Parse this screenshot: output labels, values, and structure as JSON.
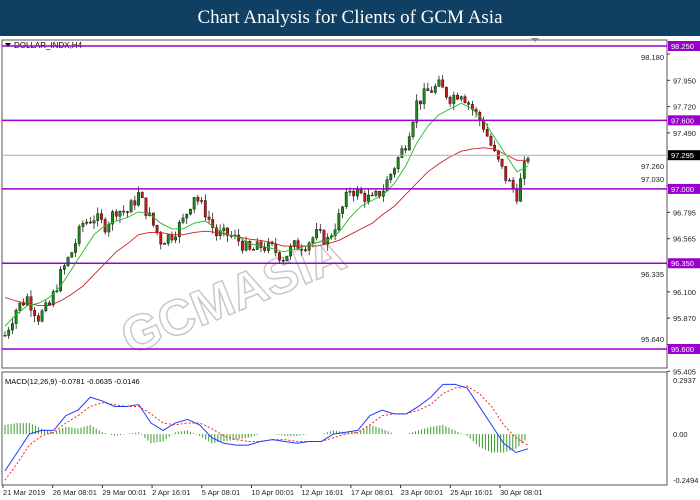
{
  "header": {
    "title": "Chart Analysis for Clients of GCM Asia"
  },
  "chart_data": {
    "type": "candlestick",
    "symbol_label": "DOLLAR_INDX,H4",
    "price_axis": {
      "ticks": [
        "98.180",
        "97.950",
        "97.720",
        "97.490",
        "97.260",
        "97.030",
        "96.795",
        "96.565",
        "96.335",
        "96.100",
        "95.870",
        "95.640",
        "95.405"
      ],
      "range": [
        95.36,
        98.3
      ]
    },
    "current_price": "97.295",
    "horizontal_levels": [
      {
        "label": "98.250",
        "value": 98.25
      },
      {
        "label": "97.600",
        "value": 97.6
      },
      {
        "label": "97.000",
        "value": 97.0
      },
      {
        "label": "96.350",
        "value": 96.35
      },
      {
        "label": "95.600",
        "value": 95.6
      }
    ],
    "closes": [
      95.72,
      95.95,
      96.05,
      95.88,
      95.98,
      96.25,
      96.45,
      96.7,
      96.75,
      96.68,
      96.82,
      96.8,
      96.95,
      96.75,
      96.55,
      96.6,
      96.72,
      96.95,
      96.8,
      96.6,
      96.6,
      96.55,
      96.45,
      96.5,
      96.48,
      96.4,
      96.5,
      96.52,
      96.6,
      96.55,
      96.75,
      97.0,
      96.95,
      96.9,
      97.0,
      97.2,
      97.4,
      97.75,
      97.85,
      97.9,
      97.8,
      97.85,
      97.7,
      97.55,
      97.3,
      97.1,
      96.95,
      97.3
    ],
    "ma_fast": [
      95.8,
      95.9,
      95.98,
      96.0,
      96.05,
      96.15,
      96.3,
      96.45,
      96.6,
      96.68,
      96.72,
      96.75,
      96.8,
      96.78,
      96.7,
      96.65,
      96.65,
      96.7,
      96.72,
      96.65,
      96.6,
      96.58,
      96.52,
      96.5,
      96.48,
      96.45,
      96.47,
      96.5,
      96.53,
      96.55,
      96.62,
      96.75,
      96.85,
      96.9,
      96.95,
      97.05,
      97.2,
      97.4,
      97.55,
      97.65,
      97.7,
      97.75,
      97.7,
      97.6,
      97.45,
      97.3,
      97.15,
      97.2
    ],
    "ma_slow": [
      96.05,
      96.02,
      96.0,
      95.98,
      95.98,
      96.02,
      96.08,
      96.15,
      96.25,
      96.35,
      96.45,
      96.52,
      96.6,
      96.62,
      96.62,
      96.6,
      96.6,
      96.62,
      96.63,
      96.62,
      96.6,
      96.58,
      96.56,
      96.55,
      96.53,
      96.5,
      96.5,
      96.5,
      96.5,
      96.52,
      96.55,
      96.6,
      96.65,
      96.7,
      96.78,
      96.85,
      96.95,
      97.05,
      97.15,
      97.22,
      97.28,
      97.33,
      97.35,
      97.36,
      97.35,
      97.3,
      97.25,
      97.25
    ],
    "macd": {
      "label": "MACD(12,26,9) -0.0781 -0.0635 -0.0146",
      "ticks": [
        "0.2937",
        "0.00",
        "-0.2494"
      ],
      "range": [
        -0.2494,
        0.2937
      ],
      "main": [
        -0.2,
        -0.1,
        0.0,
        0.02,
        0.02,
        0.1,
        0.13,
        0.2,
        0.18,
        0.15,
        0.15,
        0.16,
        0.06,
        0.02,
        0.06,
        0.08,
        0.05,
        -0.02,
        -0.05,
        -0.06,
        -0.06,
        -0.04,
        -0.03,
        -0.04,
        -0.05,
        -0.04,
        -0.04,
        0.0,
        0.01,
        0.02,
        0.1,
        0.13,
        0.11,
        0.11,
        0.15,
        0.2,
        0.27,
        0.27,
        0.25,
        0.15,
        0.05,
        -0.05,
        -0.1,
        -0.08
      ],
      "signal": [
        -0.25,
        -0.16,
        -0.06,
        -0.01,
        0.01,
        0.06,
        0.1,
        0.15,
        0.17,
        0.16,
        0.15,
        0.15,
        0.11,
        0.06,
        0.05,
        0.06,
        0.06,
        0.03,
        -0.01,
        -0.03,
        -0.04,
        -0.04,
        -0.03,
        -0.03,
        -0.04,
        -0.04,
        -0.04,
        -0.02,
        0.0,
        0.01,
        0.05,
        0.1,
        0.11,
        0.11,
        0.13,
        0.16,
        0.22,
        0.25,
        0.26,
        0.22,
        0.15,
        0.05,
        -0.02,
        -0.06
      ],
      "colors": {
        "main": "#1f3bff",
        "signal": "#ff2020",
        "histogram": "#3a9a2a"
      }
    },
    "x_ticks": [
      "21 Mar 2019",
      "26 Mar 08:01",
      "29 Mar 00:01",
      "2 Apr 16:01",
      "5 Apr 08:01",
      "10 Apr 00:01",
      "12 Apr 16:01",
      "17 Apr 08:01",
      "23 Apr 00:01",
      "25 Apr 16:01",
      "30 Apr 08:01"
    ],
    "colors": {
      "bull": "#1a8a1a",
      "bear": "#c81818",
      "level": "#9900cc",
      "ma_fast": "#22bb22",
      "ma_slow": "#cc2222",
      "header": "#0f3f62"
    },
    "watermark": "GCMASIA GLOBAL CAPITAL MARKETS"
  }
}
